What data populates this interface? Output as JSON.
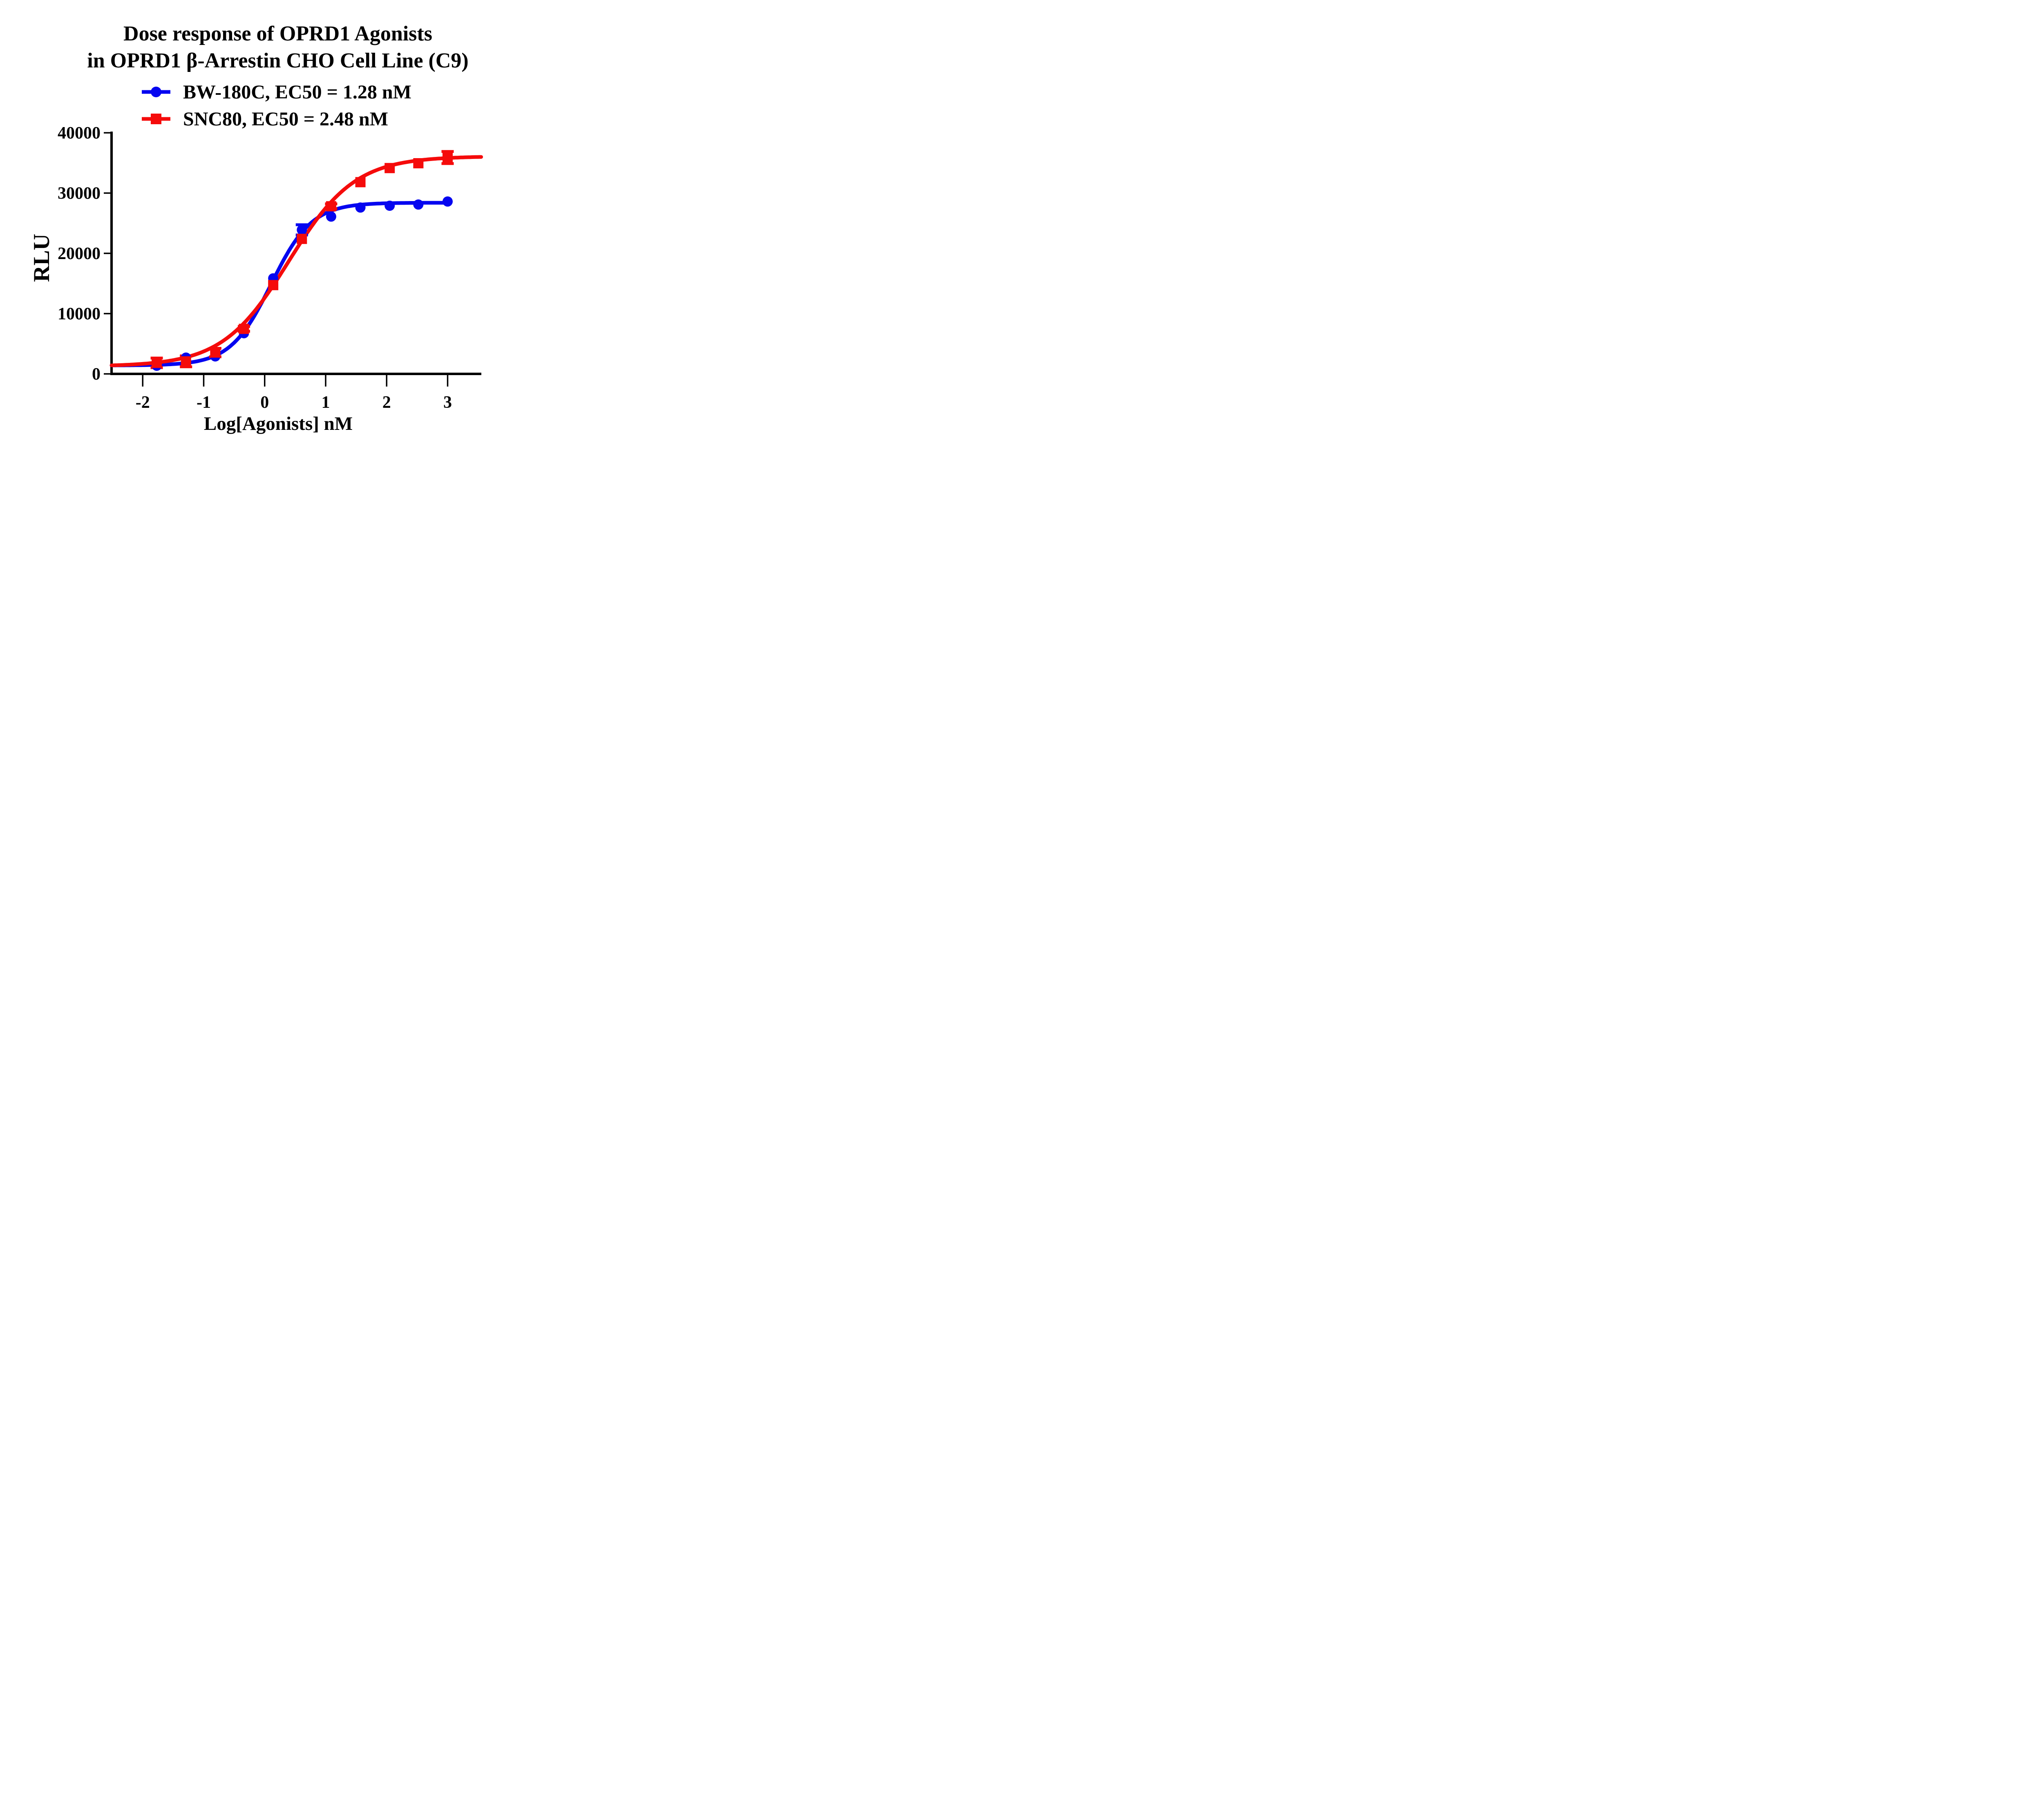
{
  "title": {
    "line1": "Dose response of OPRD1 Agonists",
    "line2": "in OPRD1 β-Arrestin CHO Cell Line (C9)"
  },
  "legend": [
    {
      "label": "BW-180C, EC50 = 1.28 nM",
      "color": "#0505f0",
      "marker": "circle"
    },
    {
      "label": "SNC80, EC50 = 2.48 nM",
      "color": "#f50b0b",
      "marker": "square"
    }
  ],
  "chart_data": {
    "type": "scatter",
    "title": "Dose response of OPRD1 Agonists in OPRD1 β-Arrestin CHO Cell Line (C9)",
    "xlabel": "Log[Agonists] nM",
    "ylabel": "RLU",
    "xlim": [
      -2.51,
      3.55
    ],
    "ylim": [
      0,
      40000
    ],
    "x_ticks": [
      -2,
      -1,
      0,
      1,
      2,
      3
    ],
    "y_ticks": [
      0,
      10000,
      20000,
      30000,
      40000
    ],
    "grid": false,
    "legend_position": "top",
    "series": [
      {
        "name": "BW-180C",
        "ec50_label": "EC50 = 1.28 nM",
        "color": "#0505f0",
        "marker": "circle",
        "x": [
          -1.77,
          -1.29,
          -0.81,
          -0.34,
          0.14,
          0.61,
          1.09,
          1.57,
          2.05,
          2.52,
          3.0
        ],
        "y": [
          1350,
          2700,
          2900,
          6750,
          15850,
          23900,
          26100,
          27600,
          27900,
          28100,
          28600
        ],
        "err": [
          0,
          0,
          0,
          0,
          0,
          850,
          0,
          0,
          0,
          0,
          0
        ],
        "fit": {
          "bottom": 1400,
          "top": 28400,
          "logec50": 0.107,
          "hill": 1.3,
          "start": -2.51,
          "end": 3.0
        }
      },
      {
        "name": "SNC80",
        "ec50_label": "EC50 = 2.48 nM",
        "color": "#f50b0b",
        "marker": "square",
        "x": [
          -1.77,
          -1.29,
          -0.81,
          -0.34,
          0.14,
          0.61,
          1.09,
          1.57,
          2.05,
          2.52,
          3.0
        ],
        "y": [
          1830,
          2080,
          3540,
          7470,
          14730,
          22400,
          27810,
          31810,
          34150,
          34950,
          35900
        ],
        "err": [
          800,
          900,
          700,
          400,
          0,
          0,
          400,
          0,
          0,
          0,
          1000
        ],
        "fit": {
          "bottom": 1250,
          "top": 36100,
          "logec50": 0.394,
          "hill": 0.8,
          "start": -2.51,
          "end": 3.55
        }
      }
    ]
  }
}
